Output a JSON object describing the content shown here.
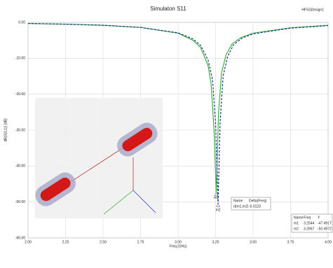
{
  "chart_data": {
    "type": "line",
    "title": "Simulaton S11",
    "design_label": "HFSSDesign1",
    "x_label": "Freq [GHz]",
    "y_label": "dB(S(1,1)) [dB]",
    "xlim": [
      2.0,
      4.0
    ],
    "ylim": [
      -60,
      0
    ],
    "xticks": [
      {
        "value": 2.0,
        "label": "2.00"
      },
      {
        "value": 2.25,
        "label": "2.25"
      },
      {
        "value": 2.5,
        "label": "2.50"
      },
      {
        "value": 2.75,
        "label": "2.75"
      },
      {
        "value": 3.0,
        "label": "3.00"
      },
      {
        "value": 3.25,
        "label": "3.25"
      },
      {
        "value": 3.5,
        "label": "3.50"
      },
      {
        "value": 3.75,
        "label": "3.75"
      },
      {
        "value": 4.0,
        "label": "4.00"
      }
    ],
    "yticks": [
      {
        "value": 0,
        "label": "0.00"
      },
      {
        "value": -10,
        "label": "-10.00"
      },
      {
        "value": -20,
        "label": "-20.00"
      },
      {
        "value": -30,
        "label": "-30.00"
      },
      {
        "value": -40,
        "label": "-40.00"
      },
      {
        "value": -50,
        "label": "-50.00"
      },
      {
        "value": -60,
        "label": "-60.00"
      }
    ],
    "grid": true,
    "series": [
      {
        "color": "#3cb043",
        "dash": false,
        "x": [
          2.0,
          2.25,
          2.5,
          2.75,
          3.0,
          3.1,
          3.15,
          3.2,
          3.22,
          3.24,
          3.2544,
          3.27,
          3.29,
          3.32,
          3.36,
          3.42,
          3.5,
          3.75,
          4.0
        ],
        "values": [
          -0.3,
          -0.5,
          -0.8,
          -1.4,
          -3,
          -5,
          -7,
          -12,
          -17,
          -30,
          -47.5,
          -25,
          -14,
          -9,
          -6,
          -4.2,
          -3,
          -1.5,
          -0.8
        ]
      },
      {
        "color": "#1f2f9c",
        "dash": true,
        "x": [
          2.0,
          2.25,
          2.5,
          2.75,
          3.0,
          3.1,
          3.15,
          3.2,
          3.23,
          3.25,
          3.2667,
          3.28,
          3.3,
          3.33,
          3.37,
          3.43,
          3.5,
          3.75,
          4.0
        ],
        "values": [
          -0.3,
          -0.5,
          -0.8,
          -1.4,
          -2.9,
          -4.6,
          -6.4,
          -10.5,
          -16,
          -28,
          -50.5,
          -28,
          -15,
          -9.5,
          -6.2,
          -4.3,
          -3.2,
          -1.6,
          -0.9
        ]
      }
    ],
    "marker_table": {
      "headers": [
        "Name",
        "Freq",
        "Y"
      ],
      "rows": [
        [
          "m1",
          3.2544,
          -47.4917
        ],
        [
          "m2",
          3.2667,
          -50.4972
        ]
      ]
    },
    "delta_table": {
      "headers": [
        "Name",
        "Delta(Freq)"
      ],
      "rows": [
        [
          "d(m1,m2)",
          -0.0123
        ]
      ]
    }
  }
}
